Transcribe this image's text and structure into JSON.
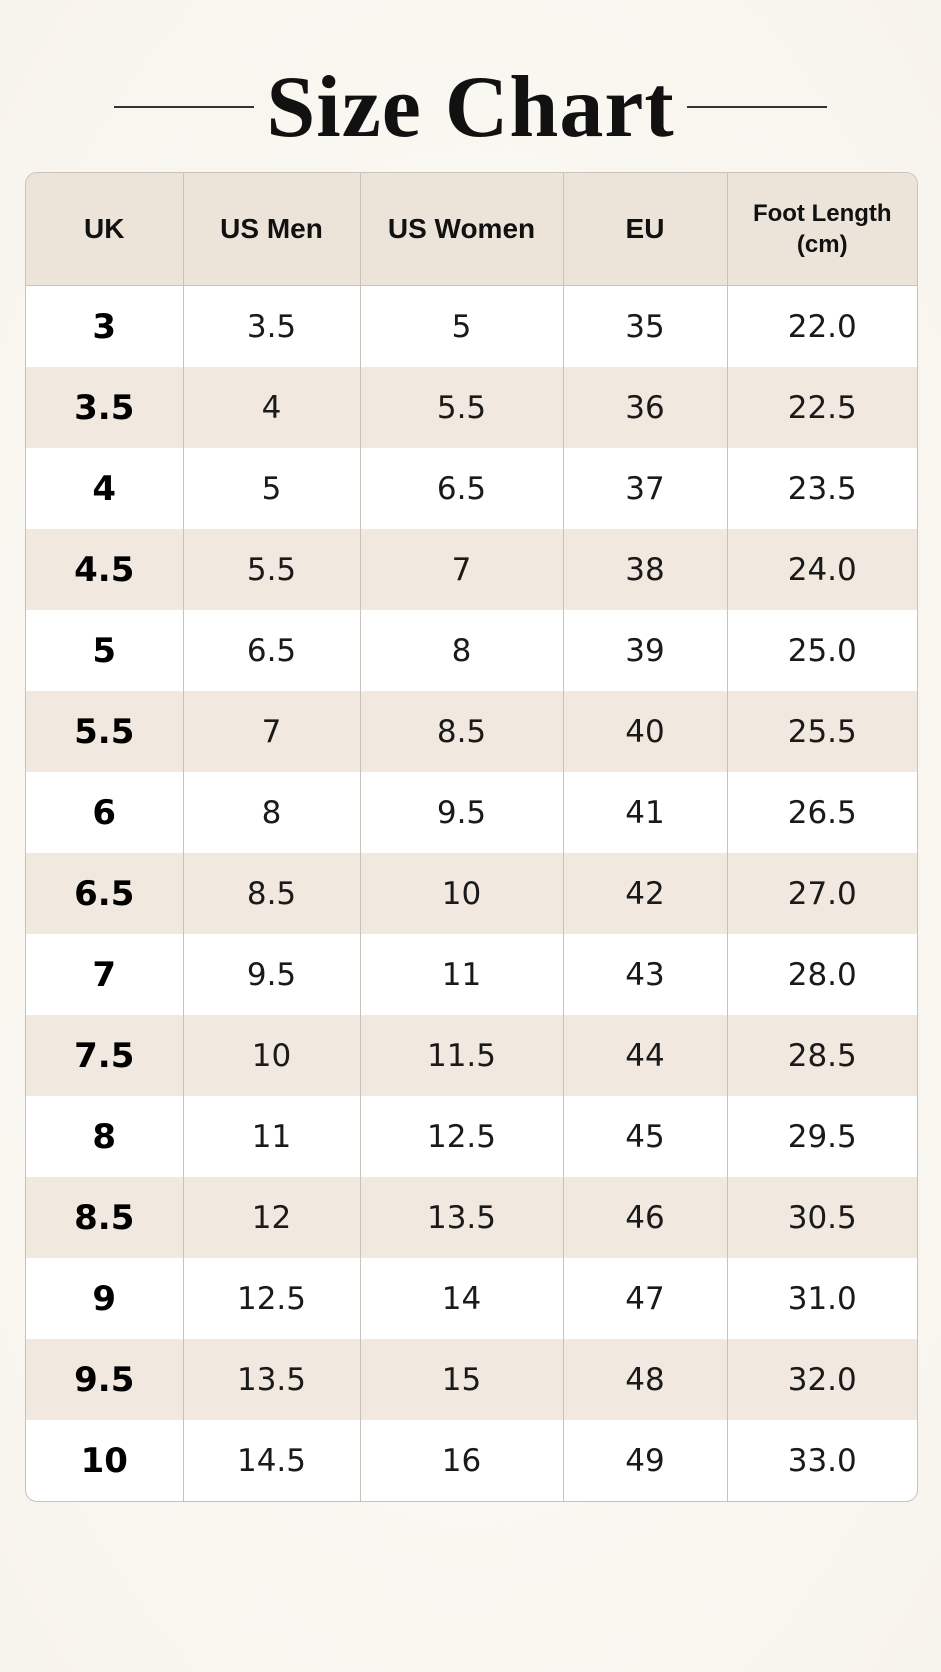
{
  "header": {
    "title": "Size Chart"
  },
  "table": {
    "columns": [
      "UK",
      "US Men",
      "US Women",
      "EU",
      "Foot Length (cm)"
    ],
    "rows": [
      [
        "3",
        "3.5",
        "5",
        "35",
        "22.0"
      ],
      [
        "3.5",
        "4",
        "5.5",
        "36",
        "22.5"
      ],
      [
        "4",
        "5",
        "6.5",
        "37",
        "23.5"
      ],
      [
        "4.5",
        "5.5",
        "7",
        "38",
        "24.0"
      ],
      [
        "5",
        "6.5",
        "8",
        "39",
        "25.0"
      ],
      [
        "5.5",
        "7",
        "8.5",
        "40",
        "25.5"
      ],
      [
        "6",
        "8",
        "9.5",
        "41",
        "26.5"
      ],
      [
        "6.5",
        "8.5",
        "10",
        "42",
        "27.0"
      ],
      [
        "7",
        "9.5",
        "11",
        "43",
        "28.0"
      ],
      [
        "7.5",
        "10",
        "11.5",
        "44",
        "28.5"
      ],
      [
        "8",
        "11",
        "12.5",
        "45",
        "29.5"
      ],
      [
        "8.5",
        "12",
        "13.5",
        "46",
        "30.5"
      ],
      [
        "9",
        "12.5",
        "14",
        "47",
        "31.0"
      ],
      [
        "9.5",
        "13.5",
        "15",
        "48",
        "32.0"
      ],
      [
        "10",
        "14.5",
        "16",
        "49",
        "33.0"
      ]
    ]
  }
}
